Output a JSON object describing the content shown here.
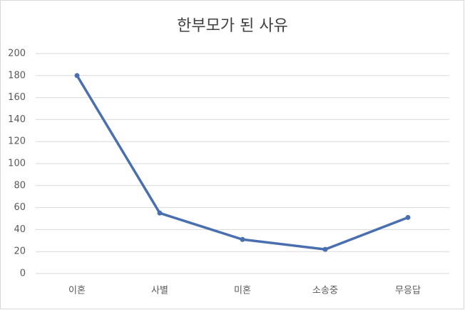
{
  "chart_data": {
    "type": "line",
    "title": "한부모가 된 사유",
    "categories": [
      "이혼",
      "사별",
      "미혼",
      "소송중",
      "무응답"
    ],
    "values": [
      180,
      55,
      31,
      22,
      51
    ],
    "color": "#4a6fb0",
    "ylim": [
      0,
      200
    ],
    "yticks": [
      0,
      20,
      40,
      60,
      80,
      100,
      120,
      140,
      160,
      180,
      200
    ],
    "grid": true
  }
}
